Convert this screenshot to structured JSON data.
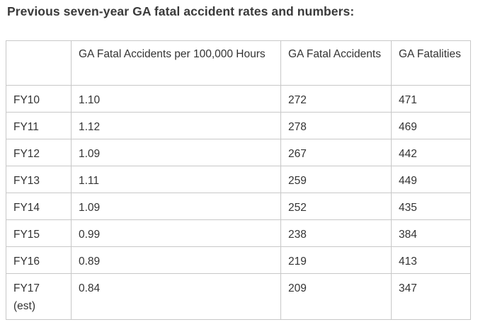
{
  "title": "Previous seven-year GA fatal accident rates and numbers:",
  "table": {
    "headers": [
      "",
      "GA Fatal Accidents per 100,000 Hours",
      "GA Fatal Accidents",
      "GA Fatalities"
    ],
    "rows": [
      [
        "FY10",
        "1.10",
        "272",
        "471"
      ],
      [
        "FY11",
        "1.12",
        "278",
        "469"
      ],
      [
        "FY12",
        "1.09",
        "267",
        "442"
      ],
      [
        "FY13",
        "1.11",
        "259",
        "449"
      ],
      [
        "FY14",
        "1.09",
        "252",
        "435"
      ],
      [
        "FY15",
        "0.99",
        "238",
        "384"
      ],
      [
        "FY16",
        "0.89",
        "219",
        "413"
      ],
      [
        "FY17 (est)",
        "0.84",
        "209",
        "347"
      ]
    ]
  },
  "colors": {
    "text": "#333333",
    "title": "#3a3a3a",
    "border": "#c8c8c8",
    "background": "#ffffff"
  }
}
